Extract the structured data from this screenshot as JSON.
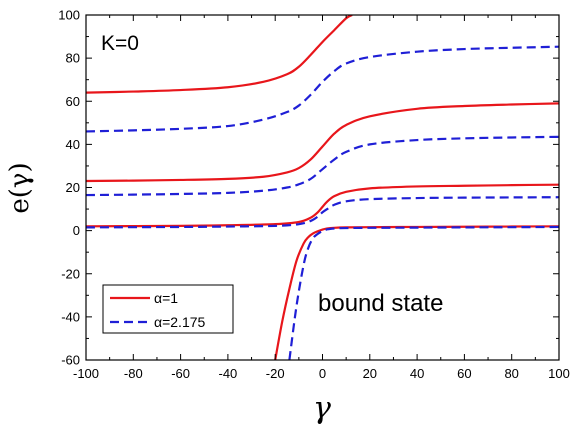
{
  "chart_data": {
    "type": "line",
    "title": "",
    "xlabel": "γ",
    "ylabel": "e(γ)",
    "xlim": [
      -100,
      100
    ],
    "ylim": [
      -60,
      100
    ],
    "x_ticks": [
      -100,
      -80,
      -60,
      -40,
      -20,
      0,
      20,
      40,
      60,
      80,
      100
    ],
    "y_ticks": [
      -60,
      -40,
      -20,
      0,
      20,
      40,
      60,
      80,
      100
    ],
    "grid": false,
    "legend_position": "bottom-left",
    "annotations": [
      "K=0",
      "bound state"
    ],
    "series": [
      {
        "name": "α=1",
        "color": "#e8161b",
        "dash": "solid",
        "branches": [
          {
            "x": [
              -20,
              -17,
              -14,
              -11,
              -8,
              -6,
              -4,
              -2,
              0,
              2,
              5,
              10,
              20,
              40,
              60,
              80,
              100
            ],
            "y": [
              -60,
              -42,
              -27,
              -14,
              -6,
              -3,
              -1.3,
              -0.3,
              0.5,
              1.0,
              1.3,
              1.5,
              1.6,
              1.7,
              1.8,
              1.9,
              2.0
            ]
          },
          {
            "x": [
              -100,
              -60,
              -40,
              -20,
              -10,
              -5,
              -2,
              0,
              2,
              5,
              10,
              20,
              40,
              60,
              80,
              100
            ],
            "y": [
              2,
              2.2,
              2.5,
              3,
              4,
              6,
              8.5,
              11,
              13.5,
              16,
              18,
              19.6,
              20.5,
              20.8,
              21.1,
              21.3
            ]
          },
          {
            "x": [
              -100,
              -80,
              -60,
              -40,
              -25,
              -15,
              -10,
              -5,
              0,
              5,
              10,
              20,
              40,
              60,
              80,
              100
            ],
            "y": [
              23,
              23.2,
              23.5,
              24,
              25,
              27,
              29,
              33,
              39,
              45,
              49,
              53,
              56.5,
              57.8,
              58.5,
              59
            ]
          },
          {
            "x": [
              -100,
              -80,
              -60,
              -40,
              -25,
              -15,
              -10,
              -5,
              0,
              5,
              10,
              12.5
            ],
            "y": [
              64,
              64.5,
              65.2,
              66.5,
              69,
              72.5,
              76,
              81.5,
              87.5,
              93,
              98.5,
              100
            ]
          }
        ]
      },
      {
        "name": "α=2.175",
        "color": "#1f1fd6",
        "dash": "dashed",
        "branches": [
          {
            "x": [
              -14,
              -11,
              -8,
              -6,
              -4,
              -2,
              0,
              2,
              5,
              10,
              20,
              40,
              60,
              80,
              100
            ],
            "y": [
              -60,
              -35,
              -16,
              -8,
              -3.5,
              -1.5,
              -0.2,
              0.6,
              1.0,
              1.2,
              1.3,
              1.4,
              1.5,
              1.6,
              1.7
            ]
          },
          {
            "x": [
              -100,
              -60,
              -40,
              -20,
              -10,
              -5,
              -2,
              0,
              2,
              5,
              10,
              20,
              40,
              60,
              80,
              100
            ],
            "y": [
              1.5,
              1.7,
              1.9,
              2.2,
              3,
              4.5,
              6.5,
              8.5,
              10,
              12,
              13.6,
              14.6,
              15.1,
              15.3,
              15.4,
              15.5
            ]
          },
          {
            "x": [
              -100,
              -80,
              -60,
              -40,
              -25,
              -15,
              -10,
              -5,
              0,
              5,
              10,
              20,
              40,
              60,
              80,
              100
            ],
            "y": [
              16.5,
              16.7,
              17,
              17.5,
              18.5,
              20,
              21.5,
              24,
              28.5,
              33,
              36.5,
              40,
              42,
              42.8,
              43.2,
              43.5
            ]
          },
          {
            "x": [
              -100,
              -80,
              -60,
              -40,
              -25,
              -15,
              -10,
              -5,
              0,
              5,
              10,
              20,
              40,
              60,
              80,
              100
            ],
            "y": [
              46,
              46.5,
              47.2,
              48.5,
              51.5,
              55,
              58,
              63,
              69,
              74,
              77.5,
              80.5,
              83,
              84.2,
              84.8,
              85.3
            ]
          }
        ]
      }
    ]
  }
}
